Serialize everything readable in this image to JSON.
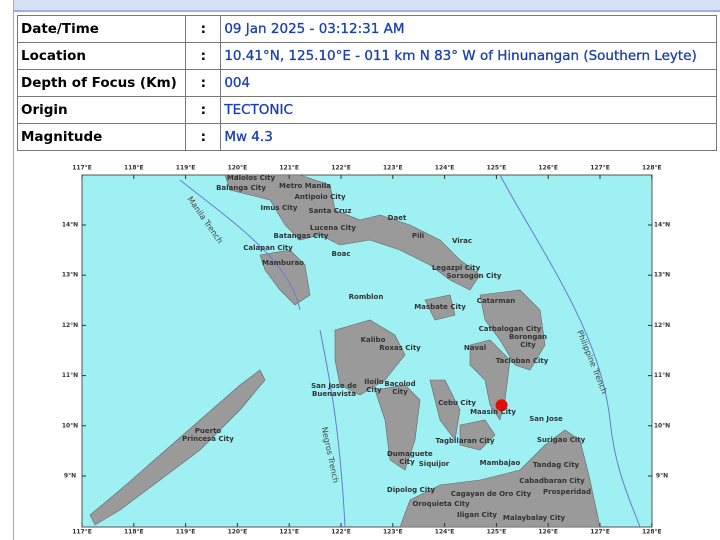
{
  "table": {
    "rows": [
      [
        "Date/Time",
        ":",
        "09 Jan 2025 - 03:12:31 AM"
      ],
      [
        "Location",
        ":",
        "10.41°N, 125.10°E - 011 km N 83° W of Hinunangan (Southern Leyte)"
      ],
      [
        "Depth of Focus (Km)",
        ":",
        "004"
      ],
      [
        "Origin",
        ":",
        "TECTONIC"
      ],
      [
        "Magnitude",
        ":",
        "Mw 4.3"
      ]
    ]
  },
  "map": {
    "lon_ticks": [
      {
        "value": 117,
        "label": "117°E"
      },
      {
        "value": 118,
        "label": "118°E"
      },
      {
        "value": 119,
        "label": "119°E"
      },
      {
        "value": 120,
        "label": "120°E"
      },
      {
        "value": 121,
        "label": "121°E"
      },
      {
        "value": 122,
        "label": "122°E"
      },
      {
        "value": 123,
        "label": "123°E"
      },
      {
        "value": 124,
        "label": "124°E"
      },
      {
        "value": 125,
        "label": "125°E"
      },
      {
        "value": 126,
        "label": "126°E"
      },
      {
        "value": 127,
        "label": "127°E"
      },
      {
        "value": 128,
        "label": "128°E"
      }
    ],
    "lat_ticks": [
      {
        "value": 14,
        "label": "14°N"
      },
      {
        "value": 13,
        "label": "13°N"
      },
      {
        "value": 12,
        "label": "12°N"
      },
      {
        "value": 11,
        "label": "11°N"
      },
      {
        "value": 10,
        "label": "10°N"
      },
      {
        "value": 9,
        "label": "9°N"
      }
    ],
    "epicenter": {
      "lon": 125.1,
      "lat": 10.41
    },
    "trenches": [
      "Manila Trench",
      "Negros Trench",
      "Philippine Trench"
    ],
    "places": [
      "Malolos City",
      "Balanga City",
      "Metro Manila",
      "Antipolo City",
      "Imus City",
      "Santa Cruz",
      "Daet",
      "Pili",
      "Virac",
      "Lucena City",
      "Batangas City",
      "Calapan City",
      "Boac",
      "Mamburao",
      "Legazpi City",
      "Sorsogon City",
      "Romblon",
      "Masbate City",
      "Catarman",
      "Catbalogan City",
      "Borongan City",
      "Kalibo",
      "Roxas City",
      "Naval",
      "Tacloban City",
      "San Jose de Buenavista",
      "Iloilo City",
      "Bacolod City",
      "Cebu City",
      "Maasin City",
      "San Jose",
      "Surigao City",
      "Tagbilaran City",
      "Puerto Princesa City",
      "Dumaguete City",
      "Siquijor",
      "Mambajao",
      "Tandag City",
      "Cabadbaran City",
      "Prosperidad",
      "Dipolog City",
      "Cagayan de Oro City",
      "Oroquieta City",
      "Iligan City",
      "Malaybalay City"
    ]
  }
}
